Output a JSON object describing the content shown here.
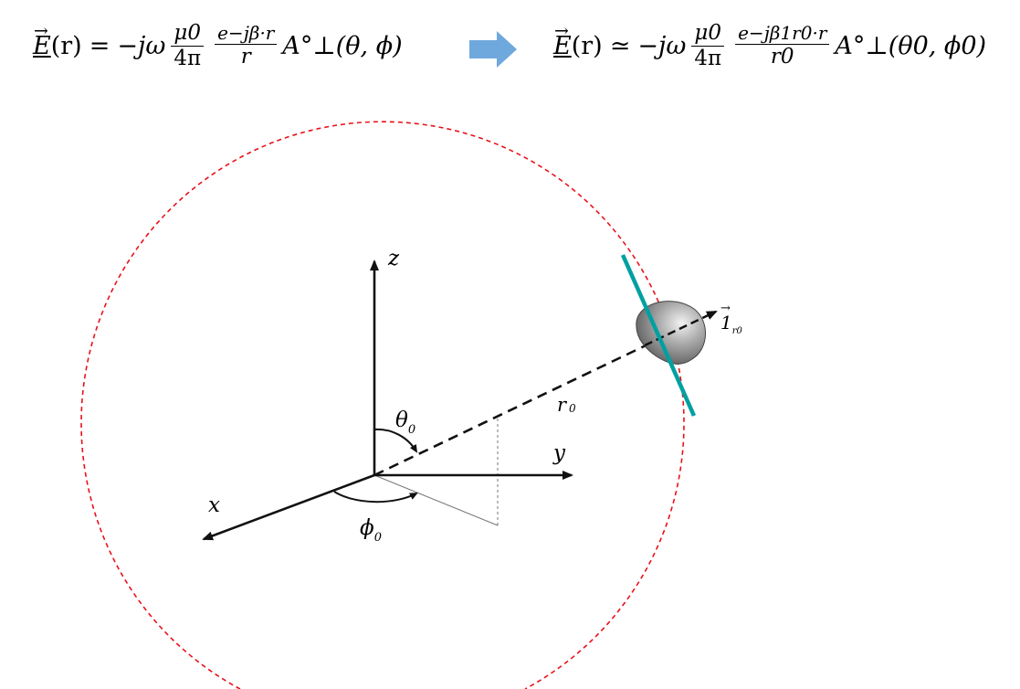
{
  "equations": {
    "left": {
      "lhs": "E",
      "arg": "(r)",
      "equals": "=",
      "prefix": "−jω",
      "frac1_num": "μ0",
      "frac1_den": "4π",
      "frac2_num": "e−jβ·r",
      "frac2_den": "r",
      "tail": "A°⊥(θ, ϕ)"
    },
    "right": {
      "lhs": "E",
      "arg": "(r)",
      "approx": "≃",
      "prefix": "−jω",
      "frac1_num": "μ0",
      "frac1_den": "4π",
      "frac2_num": "e−jβ1r0·r",
      "frac2_den": "r0",
      "tail": "A°⊥(θ0, ϕ0)"
    },
    "arrow_color": "#6fa8dc"
  },
  "diagram": {
    "axis_labels": {
      "z": "z",
      "y": "y",
      "x": "x"
    },
    "angle_labels": {
      "theta": "θ",
      "theta_sub": "0",
      "phi": "ϕ",
      "phi_sub": "0"
    },
    "radius_label": {
      "main": "r",
      "sub": "0"
    },
    "unit_vector_label": {
      "main": "1",
      "sub": "r0"
    },
    "colors": {
      "sphere": "#e8111a",
      "plane": "#00a0a0",
      "body_fill": "#8a8a8a",
      "axes": "#111111"
    }
  }
}
